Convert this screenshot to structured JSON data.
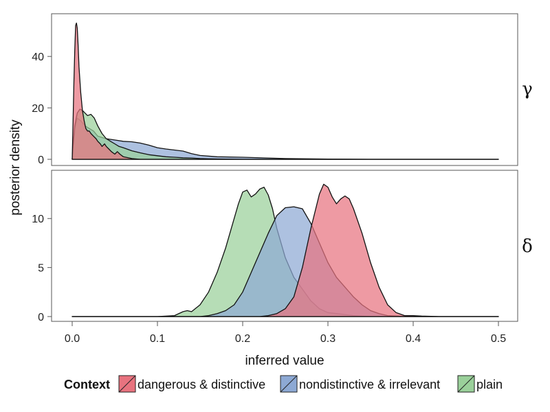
{
  "chart_data": {
    "type": "area",
    "xlabel": "inferred value",
    "ylabel": "posterior density",
    "xlim": [
      0,
      0.5
    ],
    "x_ticks": [
      0,
      0.1,
      0.2,
      0.3,
      0.4,
      0.5
    ],
    "x_tick_labels": [
      "0.0",
      "0.1",
      "0.2",
      "0.3",
      "0.4",
      "0.5"
    ],
    "grid": false,
    "legend": {
      "title": "Context",
      "placement": "bottom",
      "entries": [
        {
          "key": "dangerous",
          "label": "dangerous & distinctive",
          "color": "#E8737F"
        },
        {
          "key": "nondistinctive",
          "label": "nondistinctive & irrelevant",
          "color": "#8DA9D4"
        },
        {
          "key": "plain",
          "label": "plain",
          "color": "#9AD09A"
        }
      ]
    },
    "panels": [
      {
        "strip": "γ",
        "ylim": [
          0,
          55
        ],
        "y_ticks": [
          0,
          20,
          40
        ],
        "y_tick_labels": [
          "0",
          "20",
          "40"
        ],
        "series": [
          {
            "key": "nondistinctive",
            "points": [
              [
                0,
                0
              ],
              [
                0.001,
                5
              ],
              [
                0.003,
                12
              ],
              [
                0.006,
                16
              ],
              [
                0.01,
                15
              ],
              [
                0.015,
                13
              ],
              [
                0.02,
                12
              ],
              [
                0.025,
                11
              ],
              [
                0.03,
                9
              ],
              [
                0.035,
                8.5
              ],
              [
                0.04,
                8
              ],
              [
                0.05,
                7.5
              ],
              [
                0.06,
                7
              ],
              [
                0.07,
                6.8
              ],
              [
                0.08,
                6.3
              ],
              [
                0.09,
                5.5
              ],
              [
                0.1,
                4.5
              ],
              [
                0.11,
                4
              ],
              [
                0.12,
                3.6
              ],
              [
                0.13,
                3.2
              ],
              [
                0.14,
                2.2
              ],
              [
                0.15,
                1.5
              ],
              [
                0.17,
                1.0
              ],
              [
                0.2,
                0.8
              ],
              [
                0.25,
                0.3
              ],
              [
                0.3,
                0.1
              ],
              [
                0.35,
                0
              ],
              [
                0.5,
                0
              ]
            ]
          },
          {
            "key": "plain",
            "points": [
              [
                0,
                0
              ],
              [
                0.001,
                5
              ],
              [
                0.003,
                13
              ],
              [
                0.006,
                18
              ],
              [
                0.009,
                19.5
              ],
              [
                0.012,
                19
              ],
              [
                0.015,
                18
              ],
              [
                0.018,
                17
              ],
              [
                0.022,
                17.5
              ],
              [
                0.026,
                16
              ],
              [
                0.03,
                13
              ],
              [
                0.035,
                10
              ],
              [
                0.04,
                8
              ],
              [
                0.045,
                7
              ],
              [
                0.05,
                6
              ],
              [
                0.055,
                5
              ],
              [
                0.06,
                4.5
              ],
              [
                0.07,
                3.3
              ],
              [
                0.08,
                2.5
              ],
              [
                0.09,
                1.8
              ],
              [
                0.1,
                1.4
              ],
              [
                0.11,
                1.0
              ],
              [
                0.12,
                0.8
              ],
              [
                0.13,
                0.6
              ],
              [
                0.14,
                0.5
              ],
              [
                0.15,
                0.3
              ],
              [
                0.16,
                0.2
              ],
              [
                0.18,
                0.1
              ],
              [
                0.2,
                0
              ],
              [
                0.5,
                0
              ]
            ]
          },
          {
            "key": "dangerous",
            "points": [
              [
                0,
                0
              ],
              [
                0.001,
                14
              ],
              [
                0.002,
                30
              ],
              [
                0.003,
                42
              ],
              [
                0.004,
                52
              ],
              [
                0.005,
                53
              ],
              [
                0.006,
                51
              ],
              [
                0.007,
                44
              ],
              [
                0.008,
                36
              ],
              [
                0.01,
                26
              ],
              [
                0.012,
                19
              ],
              [
                0.014,
                15
              ],
              [
                0.016,
                12
              ],
              [
                0.018,
                11
              ],
              [
                0.02,
                11
              ],
              [
                0.022,
                10
              ],
              [
                0.025,
                9
              ],
              [
                0.028,
                8
              ],
              [
                0.03,
                7
              ],
              [
                0.033,
                6
              ],
              [
                0.035,
                5
              ],
              [
                0.038,
                6
              ],
              [
                0.04,
                5
              ],
              [
                0.043,
                4
              ],
              [
                0.046,
                3
              ],
              [
                0.05,
                2
              ],
              [
                0.053,
                3
              ],
              [
                0.056,
                2
              ],
              [
                0.06,
                1
              ],
              [
                0.07,
                0.3
              ],
              [
                0.08,
                0
              ],
              [
                0.5,
                0
              ]
            ]
          }
        ]
      },
      {
        "strip": "δ",
        "ylim": [
          0,
          14.5
        ],
        "y_ticks": [
          0,
          5,
          10
        ],
        "y_tick_labels": [
          "0",
          "5",
          "10"
        ],
        "series": [
          {
            "key": "plain",
            "points": [
              [
                0,
                0
              ],
              [
                0.1,
                0
              ],
              [
                0.12,
                0.1
              ],
              [
                0.13,
                0.5
              ],
              [
                0.135,
                0.6
              ],
              [
                0.14,
                0.5
              ],
              [
                0.15,
                1.2
              ],
              [
                0.16,
                2.5
              ],
              [
                0.17,
                4.5
              ],
              [
                0.18,
                7
              ],
              [
                0.19,
                10
              ],
              [
                0.195,
                11.5
              ],
              [
                0.2,
                12.7
              ],
              [
                0.205,
                12.9
              ],
              [
                0.21,
                12.2
              ],
              [
                0.215,
                12.5
              ],
              [
                0.22,
                13.0
              ],
              [
                0.225,
                13.2
              ],
              [
                0.23,
                12.4
              ],
              [
                0.235,
                11
              ],
              [
                0.24,
                9
              ],
              [
                0.25,
                6
              ],
              [
                0.26,
                4
              ],
              [
                0.27,
                2.8
              ],
              [
                0.28,
                1.6
              ],
              [
                0.29,
                0.8
              ],
              [
                0.3,
                0.4
              ],
              [
                0.31,
                0.3
              ],
              [
                0.32,
                0.2
              ],
              [
                0.33,
                0.1
              ],
              [
                0.35,
                0
              ],
              [
                0.5,
                0
              ]
            ]
          },
          {
            "key": "nondistinctive",
            "points": [
              [
                0,
                0
              ],
              [
                0.15,
                0
              ],
              [
                0.16,
                0.1
              ],
              [
                0.17,
                0.3
              ],
              [
                0.18,
                0.6
              ],
              [
                0.19,
                1.2
              ],
              [
                0.2,
                2.5
              ],
              [
                0.21,
                4.5
              ],
              [
                0.22,
                6.5
              ],
              [
                0.23,
                8.5
              ],
              [
                0.24,
                10.3
              ],
              [
                0.25,
                11.1
              ],
              [
                0.26,
                11.2
              ],
              [
                0.27,
                11.0
              ],
              [
                0.28,
                9.5
              ],
              [
                0.29,
                7.5
              ],
              [
                0.3,
                5.5
              ],
              [
                0.31,
                4
              ],
              [
                0.32,
                3
              ],
              [
                0.33,
                2
              ],
              [
                0.34,
                1.2
              ],
              [
                0.35,
                0.6
              ],
              [
                0.36,
                0.3
              ],
              [
                0.37,
                0.1
              ],
              [
                0.4,
                0
              ],
              [
                0.5,
                0
              ]
            ]
          },
          {
            "key": "dangerous",
            "points": [
              [
                0,
                0
              ],
              [
                0.22,
                0
              ],
              [
                0.23,
                0.1
              ],
              [
                0.24,
                0.3
              ],
              [
                0.25,
                0.8
              ],
              [
                0.26,
                2
              ],
              [
                0.27,
                5
              ],
              [
                0.28,
                9
              ],
              [
                0.29,
                12.5
              ],
              [
                0.295,
                13.5
              ],
              [
                0.3,
                13.2
              ],
              [
                0.305,
                12.2
              ],
              [
                0.31,
                11.5
              ],
              [
                0.315,
                12.0
              ],
              [
                0.32,
                12.3
              ],
              [
                0.325,
                12.0
              ],
              [
                0.33,
                11
              ],
              [
                0.34,
                8.5
              ],
              [
                0.35,
                5.5
              ],
              [
                0.36,
                3
              ],
              [
                0.37,
                1.2
              ],
              [
                0.38,
                0.4
              ],
              [
                0.39,
                0.1
              ],
              [
                0.4,
                0.1
              ],
              [
                0.41,
                0.05
              ],
              [
                0.43,
                0
              ],
              [
                0.5,
                0
              ]
            ]
          }
        ]
      }
    ]
  }
}
